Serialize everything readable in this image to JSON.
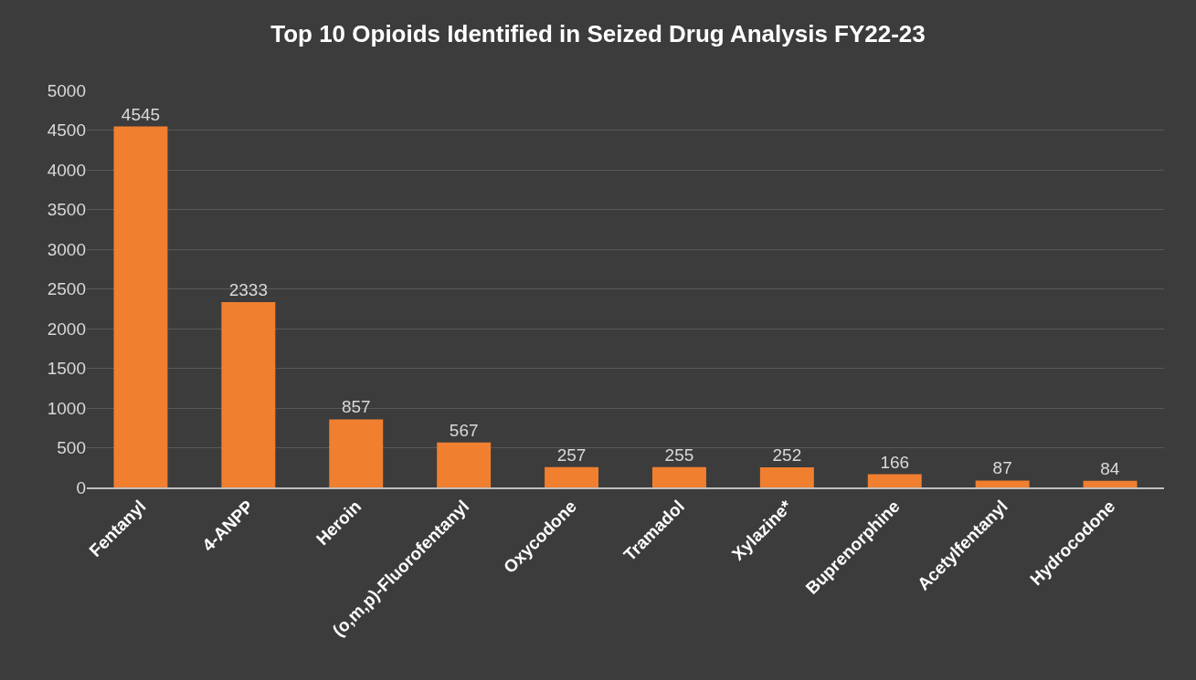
{
  "chart_data": {
    "type": "bar",
    "title": "Top 10 Opioids Identified in Seized Drug Analysis FY22-23",
    "categories": [
      "Fentanyl",
      "4-ANPP",
      "Heroin",
      "(o,m,p)-Fluorofentanyl",
      "Oxycodone",
      "Tramadol",
      "Xylazine*",
      "Buprenorphine",
      "Acetylfentanyl",
      "Hydrocodone"
    ],
    "values": [
      4545,
      2333,
      857,
      567,
      257,
      255,
      252,
      166,
      87,
      84
    ],
    "color": "#f07f2f",
    "ylim": [
      0,
      5000
    ],
    "yticks": [
      0,
      500,
      1000,
      1500,
      2000,
      2500,
      3000,
      3500,
      4000,
      4500,
      5000
    ],
    "grid": "y",
    "data_labels": true
  }
}
